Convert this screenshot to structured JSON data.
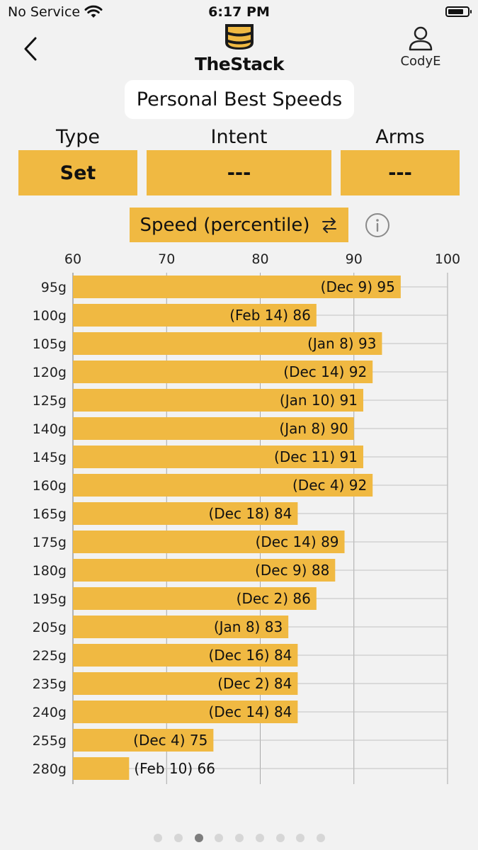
{
  "status": {
    "carrier": "No Service",
    "time": "6:17 PM"
  },
  "header": {
    "app_name": "TheStack",
    "user_name": "CodyE",
    "back_icon": "chevron-left-icon",
    "user_icon": "person-icon"
  },
  "title": "Personal Best Speeds",
  "filters": [
    {
      "label": "Type",
      "value": "Set"
    },
    {
      "label": "Intent",
      "value": "---"
    },
    {
      "label": "Arms",
      "value": "---"
    }
  ],
  "metric": {
    "label": "Speed (percentile)",
    "icon": "swap-arrows-icon",
    "info_icon": "info-icon"
  },
  "accent_color": "#f0b942",
  "chart_data": {
    "type": "bar",
    "orientation": "horizontal",
    "xlim": [
      60,
      100
    ],
    "x_ticks": [
      60,
      70,
      80,
      90,
      100
    ],
    "grid": true,
    "categories": [
      "95g",
      "100g",
      "105g",
      "120g",
      "125g",
      "140g",
      "145g",
      "160g",
      "165g",
      "175g",
      "180g",
      "195g",
      "205g",
      "225g",
      "235g",
      "240g",
      "255g",
      "280g"
    ],
    "values": [
      95,
      86,
      93,
      92,
      91,
      90,
      91,
      92,
      84,
      89,
      88,
      86,
      83,
      84,
      84,
      84,
      75,
      66
    ],
    "dates": [
      "Dec 9",
      "Feb 14",
      "Jan 8",
      "Dec 14",
      "Jan 10",
      "Jan 8",
      "Dec 11",
      "Dec 4",
      "Dec 18",
      "Dec 14",
      "Dec 9",
      "Dec 2",
      "Jan 8",
      "Dec 16",
      "Dec 2",
      "Dec 14",
      "Dec 4",
      "Feb 10"
    ],
    "bar_color": "#f0b942"
  },
  "pagination": {
    "total": 9,
    "active": 3
  }
}
